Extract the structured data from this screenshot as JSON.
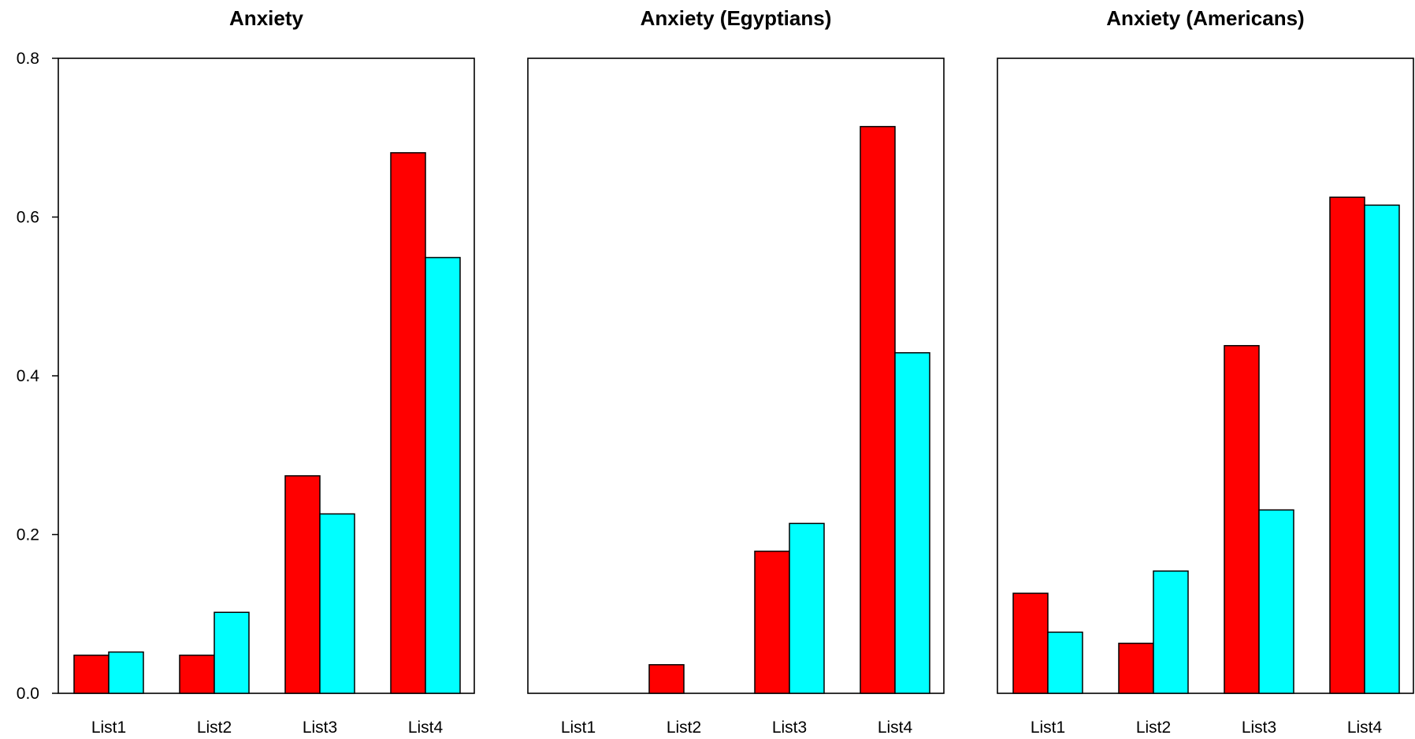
{
  "chart_data": [
    {
      "type": "bar",
      "title": "Anxiety",
      "categories": [
        "List1",
        "List2",
        "List3",
        "List4"
      ],
      "series": [
        {
          "color": "#ff0000",
          "values": [
            0.048,
            0.048,
            0.274,
            0.681
          ]
        },
        {
          "color": "#00ffff",
          "values": [
            0.052,
            0.102,
            0.226,
            0.549
          ]
        }
      ],
      "ylim": [
        0,
        0.8
      ],
      "yticks": [
        "0.0",
        "0.2",
        "0.4",
        "0.6",
        "0.8"
      ],
      "show_y_axis": true,
      "xlabel": "",
      "ylabel": ""
    },
    {
      "type": "bar",
      "title": "Anxiety (Egyptians)",
      "categories": [
        "List1",
        "List2",
        "List3",
        "List4"
      ],
      "series": [
        {
          "color": "#ff0000",
          "values": [
            0,
            0.036,
            0.179,
            0.714
          ]
        },
        {
          "color": "#00ffff",
          "values": [
            0,
            0,
            0.214,
            0.429
          ]
        }
      ],
      "ylim": [
        0,
        0.8
      ],
      "yticks": [],
      "show_y_axis": false,
      "xlabel": "",
      "ylabel": ""
    },
    {
      "type": "bar",
      "title": "Anxiety (Americans)",
      "categories": [
        "List1",
        "List2",
        "List3",
        "List4"
      ],
      "series": [
        {
          "color": "#ff0000",
          "values": [
            0.126,
            0.063,
            0.438,
            0.625
          ]
        },
        {
          "color": "#00ffff",
          "values": [
            0.077,
            0.154,
            0.231,
            0.615
          ]
        }
      ],
      "ylim": [
        0,
        0.8
      ],
      "yticks": [],
      "show_y_axis": false,
      "xlabel": "",
      "ylabel": ""
    }
  ]
}
